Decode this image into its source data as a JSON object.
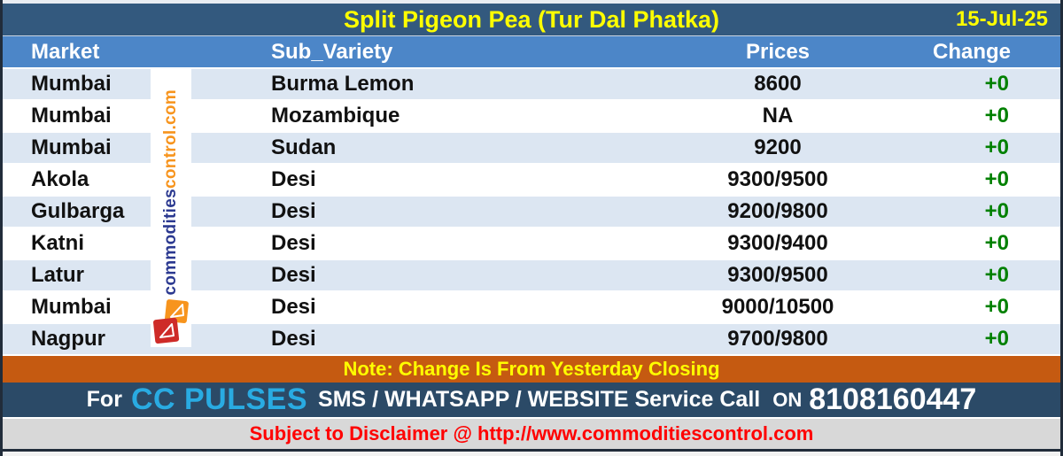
{
  "chart_data": {
    "type": "table",
    "title": "Split Pigeon Pea (Tur Dal Phatka)",
    "date": "15-Jul-25",
    "columns": [
      "Market",
      "Sub_Variety",
      "Prices",
      "Change"
    ],
    "rows": [
      [
        "Mumbai",
        "Burma Lemon",
        "8600",
        "+0"
      ],
      [
        "Mumbai",
        "Mozambique",
        "NA",
        "+0"
      ],
      [
        "Mumbai",
        "Sudan",
        "9200",
        "+0"
      ],
      [
        "Akola",
        "Desi",
        "9300/9500",
        "+0"
      ],
      [
        "Gulbarga",
        "Desi",
        "9200/9800",
        "+0"
      ],
      [
        "Katni",
        "Desi",
        "9300/9400",
        "+0"
      ],
      [
        "Latur",
        "Desi",
        "9300/9500",
        "+0"
      ],
      [
        "Mumbai",
        "Desi",
        "9000/10500",
        "+0"
      ],
      [
        "Nagpur",
        "Desi",
        "9700/9800",
        "+0"
      ]
    ]
  },
  "note": "Note: Change Is From Yesterday Closing",
  "footer": {
    "for_label": "For",
    "brand": "CC PULSES",
    "services": "SMS / WHATSAPP / WEBSITE Service Call",
    "on_label": "ON",
    "phone": "8108160447"
  },
  "disclaimer": "Subject to Disclaimer @ http://www.commoditiescontrol.com",
  "watermark": {
    "part1": "commodities",
    "part2": "control.com"
  },
  "colors": {
    "title_bar": "#33597E",
    "header_row": "#4C86C8",
    "row_alt": "#DCE6F2",
    "change_green": "#008000",
    "note_bar": "#C55A11",
    "accent_yellow": "#FFFF00",
    "footer_bar": "#2B4A67",
    "brand_cyan": "#29ABE2",
    "disclaimer_bg": "#D8D8D8",
    "disclaimer_red": "#FF0000",
    "watermark_blue": "#2B3990",
    "watermark_orange": "#F7941D"
  }
}
